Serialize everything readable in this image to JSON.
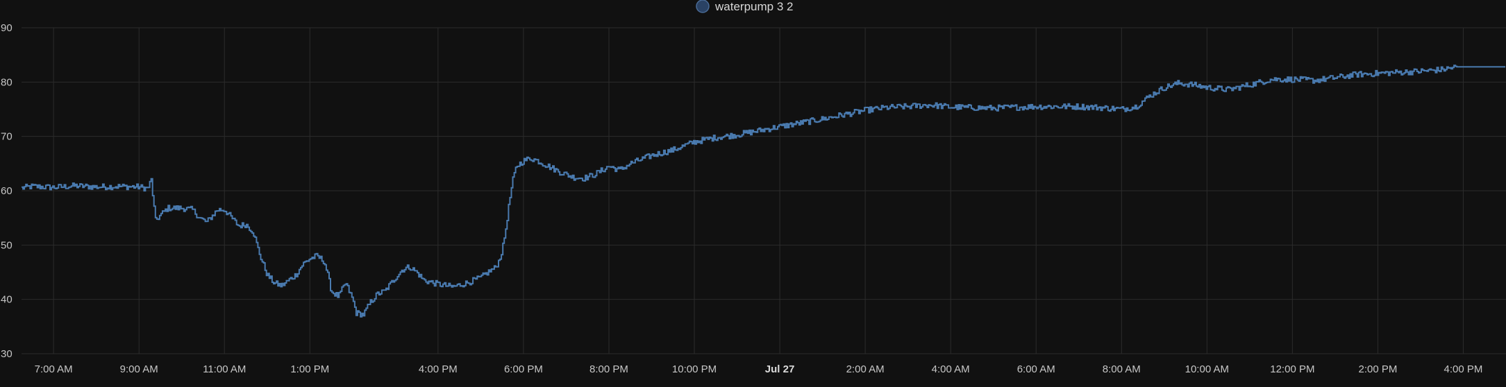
{
  "legend": {
    "label": "waterpump 3 2"
  },
  "colors": {
    "background": "#111111",
    "grid": "#2c2c2c",
    "series": "#4a7bb0",
    "legend_swatch_fill": "#2a4264",
    "legend_swatch_stroke": "#4a6b96",
    "text": "#c7c7c7"
  },
  "chart_data": {
    "type": "line",
    "title": "",
    "xlabel": "",
    "ylabel": "",
    "ylim": [
      30,
      90
    ],
    "yticks": [
      30,
      40,
      50,
      60,
      70,
      80,
      90
    ],
    "xlim": [
      "Jul 26 06:15",
      "Jul 27 17:00"
    ],
    "xticks": [
      {
        "t": "Jul 26 07:00",
        "label": "7:00 AM"
      },
      {
        "t": "Jul 26 09:00",
        "label": "9:00 AM"
      },
      {
        "t": "Jul 26 11:00",
        "label": "11:00 AM"
      },
      {
        "t": "Jul 26 13:00",
        "label": "1:00 PM"
      },
      {
        "t": "Jul 26 16:00",
        "label": "4:00 PM"
      },
      {
        "t": "Jul 26 18:00",
        "label": "6:00 PM"
      },
      {
        "t": "Jul 26 20:00",
        "label": "8:00 PM"
      },
      {
        "t": "Jul 26 22:00",
        "label": "10:00 PM"
      },
      {
        "t": "Jul 27 00:00",
        "label": "Jul 27",
        "bold": true
      },
      {
        "t": "Jul 27 02:00",
        "label": "2:00 AM"
      },
      {
        "t": "Jul 27 04:00",
        "label": "4:00 AM"
      },
      {
        "t": "Jul 27 06:00",
        "label": "6:00 AM"
      },
      {
        "t": "Jul 27 08:00",
        "label": "8:00 AM"
      },
      {
        "t": "Jul 27 10:00",
        "label": "10:00 AM"
      },
      {
        "t": "Jul 27 12:00",
        "label": "12:00 PM"
      },
      {
        "t": "Jul 27 14:00",
        "label": "2:00 PM"
      },
      {
        "t": "Jul 27 16:00",
        "label": "4:00 PM"
      }
    ],
    "grid": true,
    "legend_position": "top-center",
    "series": [
      {
        "name": "waterpump 3 2",
        "step": true,
        "points": [
          [
            "Jul 26 06:15",
            60.5
          ],
          [
            "Jul 26 06:30",
            60.8
          ],
          [
            "Jul 26 07:00",
            60.6
          ],
          [
            "Jul 26 07:30",
            60.9
          ],
          [
            "Jul 26 08:00",
            60.7
          ],
          [
            "Jul 26 08:30",
            60.8
          ],
          [
            "Jul 26 09:00",
            60.7
          ],
          [
            "Jul 26 09:12",
            60.4
          ],
          [
            "Jul 26 09:17",
            62.0
          ],
          [
            "Jul 26 09:20",
            58.0
          ],
          [
            "Jul 26 09:23",
            54.5
          ],
          [
            "Jul 26 09:30",
            55.5
          ],
          [
            "Jul 26 09:40",
            56.8
          ],
          [
            "Jul 26 10:00",
            56.8
          ],
          [
            "Jul 26 10:15",
            56.5
          ],
          [
            "Jul 26 10:25",
            55.0
          ],
          [
            "Jul 26 10:35",
            54.2
          ],
          [
            "Jul 26 10:50",
            56.5
          ],
          [
            "Jul 26 11:00",
            56.5
          ],
          [
            "Jul 26 11:10",
            55.0
          ],
          [
            "Jul 26 11:20",
            53.5
          ],
          [
            "Jul 26 11:30",
            53.8
          ],
          [
            "Jul 26 11:40",
            52.5
          ],
          [
            "Jul 26 11:50",
            48.0
          ],
          [
            "Jul 26 12:00",
            44.5
          ],
          [
            "Jul 26 12:10",
            43.0
          ],
          [
            "Jul 26 12:20",
            42.5
          ],
          [
            "Jul 26 12:30",
            43.5
          ],
          [
            "Jul 26 12:40",
            44.5
          ],
          [
            "Jul 26 12:50",
            46.5
          ],
          [
            "Jul 26 13:00",
            47.5
          ],
          [
            "Jul 26 13:10",
            48.0
          ],
          [
            "Jul 26 13:20",
            47.0
          ],
          [
            "Jul 26 13:25",
            44.5
          ],
          [
            "Jul 26 13:30",
            41.5
          ],
          [
            "Jul 26 13:40",
            40.5
          ],
          [
            "Jul 26 13:50",
            43.0
          ],
          [
            "Jul 26 14:00",
            40.0
          ],
          [
            "Jul 26 14:05",
            37.5
          ],
          [
            "Jul 26 14:15",
            37.2
          ],
          [
            "Jul 26 14:25",
            39.5
          ],
          [
            "Jul 26 14:35",
            41.0
          ],
          [
            "Jul 26 14:45",
            41.5
          ],
          [
            "Jul 26 15:00",
            44.0
          ],
          [
            "Jul 26 15:10",
            45.5
          ],
          [
            "Jul 26 15:20",
            46.0
          ],
          [
            "Jul 26 15:30",
            45.0
          ],
          [
            "Jul 26 15:40",
            43.5
          ],
          [
            "Jul 26 16:00",
            42.8
          ],
          [
            "Jul 26 16:20",
            42.3
          ],
          [
            "Jul 26 16:40",
            43.0
          ],
          [
            "Jul 26 17:00",
            44.0
          ],
          [
            "Jul 26 17:10",
            45.0
          ],
          [
            "Jul 26 17:20",
            45.8
          ],
          [
            "Jul 26 17:25",
            47.0
          ],
          [
            "Jul 26 17:30",
            49.0
          ],
          [
            "Jul 26 17:35",
            53.0
          ],
          [
            "Jul 26 17:40",
            58.0
          ],
          [
            "Jul 26 17:45",
            62.0
          ],
          [
            "Jul 26 17:50",
            64.5
          ],
          [
            "Jul 26 18:00",
            65.5
          ],
          [
            "Jul 26 18:10",
            66.0
          ],
          [
            "Jul 26 18:20",
            65.5
          ],
          [
            "Jul 26 18:35",
            64.5
          ],
          [
            "Jul 26 18:50",
            63.5
          ],
          [
            "Jul 26 19:10",
            62.5
          ],
          [
            "Jul 26 19:25",
            62.3
          ],
          [
            "Jul 26 19:40",
            63.0
          ],
          [
            "Jul 26 20:00",
            64.5
          ],
          [
            "Jul 26 20:15",
            63.8
          ],
          [
            "Jul 26 20:30",
            65.0
          ],
          [
            "Jul 26 21:00",
            66.5
          ],
          [
            "Jul 26 21:30",
            67.5
          ],
          [
            "Jul 26 22:00",
            69.0
          ],
          [
            "Jul 26 22:30",
            69.8
          ],
          [
            "Jul 26 23:00",
            70.3
          ],
          [
            "Jul 27 00:00",
            71.8
          ],
          [
            "Jul 27 01:00",
            73.2
          ],
          [
            "Jul 27 02:00",
            74.8
          ],
          [
            "Jul 27 02:30",
            75.3
          ],
          [
            "Jul 27 03:00",
            75.5
          ],
          [
            "Jul 27 03:30",
            75.8
          ],
          [
            "Jul 27 04:00",
            75.4
          ],
          [
            "Jul 27 05:00",
            75.2
          ],
          [
            "Jul 27 06:00",
            75.5
          ],
          [
            "Jul 27 07:00",
            75.5
          ],
          [
            "Jul 27 07:30",
            75.3
          ],
          [
            "Jul 27 08:00",
            75.0
          ],
          [
            "Jul 27 08:20",
            75.5
          ],
          [
            "Jul 27 08:40",
            77.5
          ],
          [
            "Jul 27 09:00",
            79.0
          ],
          [
            "Jul 27 09:20",
            79.8
          ],
          [
            "Jul 27 09:40",
            79.5
          ],
          [
            "Jul 27 10:00",
            79.0
          ],
          [
            "Jul 27 10:30",
            78.6
          ],
          [
            "Jul 27 11:00",
            79.5
          ],
          [
            "Jul 27 11:30",
            80.5
          ],
          [
            "Jul 27 12:00",
            80.5
          ],
          [
            "Jul 27 12:30",
            80.3
          ],
          [
            "Jul 27 13:00",
            80.8
          ],
          [
            "Jul 27 13:30",
            81.4
          ],
          [
            "Jul 27 14:00",
            81.6
          ],
          [
            "Jul 27 14:30",
            81.8
          ],
          [
            "Jul 27 15:00",
            82.0
          ],
          [
            "Jul 27 15:30",
            82.3
          ],
          [
            "Jul 27 15:50",
            82.8
          ],
          [
            "Jul 27 17:00",
            82.8
          ]
        ]
      }
    ]
  }
}
